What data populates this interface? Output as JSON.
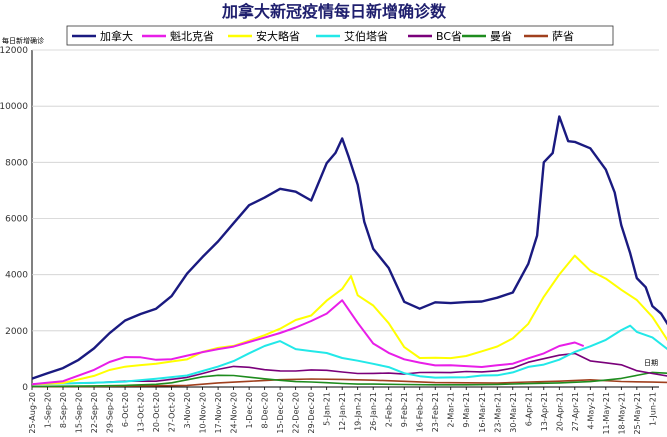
{
  "chart_data": {
    "type": "line",
    "title": "加拿大新冠疫情每日新增确诊数",
    "ylabel": "每日新增确诊",
    "xunit": "日期",
    "ylim": [
      0,
      12000
    ],
    "yticks": [
      0,
      2000,
      4000,
      6000,
      8000,
      10000,
      12000
    ],
    "grid": "horizontal",
    "legend_position": "top",
    "x_tick_labels": [
      "25-Aug-20",
      "1-Sep-20",
      "8-Sep-20",
      "15-Sep-20",
      "22-Sep-20",
      "29-Sep-20",
      "6-Oct-20",
      "13-Oct-20",
      "20-Oct-20",
      "27-Oct-20",
      "3-Nov-20",
      "10-Nov-20",
      "17-Nov-20",
      "24-Nov-20",
      "1-Dec-20",
      "8-Dec-20",
      "15-Dec-20",
      "22-Dec-20",
      "29-Dec-20",
      "5-Jan-21",
      "12-Jan-21",
      "19-Jan-21",
      "26-Jan-21",
      "2-Feb-21",
      "9-Feb-21",
      "16-Feb-21",
      "23-Feb-21",
      "2-Mar-21",
      "9-Mar-21",
      "16-Mar-21",
      "23-Mar-21",
      "30-Mar-21",
      "6-Apr-21",
      "13-Apr-21",
      "20-Apr-21",
      "27-Apr-21",
      "4-May-21",
      "11-May-21",
      "18-May-21",
      "25-May-21",
      "1-Jun-21"
    ],
    "x_start": "2020-08-25",
    "x_end": "2021-06-04",
    "series": [
      {
        "name": "加拿大",
        "color": "#1a1a80",
        "width": 2.4,
        "values": [
          [
            0,
            300
          ],
          [
            7,
            500
          ],
          [
            14,
            700
          ],
          [
            21,
            1000
          ],
          [
            28,
            1400
          ],
          [
            35,
            1900
          ],
          [
            42,
            2300
          ],
          [
            49,
            2500
          ],
          [
            56,
            2700
          ],
          [
            63,
            3200
          ],
          [
            70,
            4100
          ],
          [
            77,
            4800
          ],
          [
            84,
            5400
          ],
          [
            91,
            6000
          ],
          [
            98,
            6500
          ],
          [
            105,
            6600
          ],
          [
            112,
            6800
          ],
          [
            119,
            6700
          ],
          [
            126,
            6500
          ],
          [
            133,
            8000
          ],
          [
            137,
            8200
          ],
          [
            140,
            9100
          ],
          [
            143,
            8500
          ],
          [
            147,
            7500
          ],
          [
            150,
            6000
          ],
          [
            154,
            5100
          ],
          [
            161,
            4300
          ],
          [
            168,
            3000
          ],
          [
            175,
            2700
          ],
          [
            182,
            2900
          ],
          [
            189,
            2900
          ],
          [
            196,
            3000
          ],
          [
            203,
            3100
          ],
          [
            210,
            3300
          ],
          [
            217,
            3500
          ],
          [
            224,
            4500
          ],
          [
            228,
            5600
          ],
          [
            231,
            8000
          ],
          [
            235,
            8500
          ],
          [
            238,
            9400
          ],
          [
            242,
            8700
          ],
          [
            245,
            8400
          ],
          [
            252,
            8200
          ],
          [
            259,
            7600
          ],
          [
            263,
            6700
          ],
          [
            266,
            5800
          ],
          [
            270,
            4700
          ],
          [
            273,
            4000
          ],
          [
            277,
            3600
          ],
          [
            280,
            3000
          ],
          [
            284,
            2700
          ],
          [
            287,
            2300
          ],
          [
            290,
            2100
          ],
          [
            293,
            1900
          ],
          [
            296,
            2000
          ]
        ]
      },
      {
        "name": "魁北克省",
        "color": "#e81ee8",
        "width": 2.0,
        "values": [
          [
            0,
            100
          ],
          [
            14,
            200
          ],
          [
            28,
            600
          ],
          [
            35,
            900
          ],
          [
            42,
            1100
          ],
          [
            49,
            1100
          ],
          [
            56,
            1000
          ],
          [
            63,
            1000
          ],
          [
            70,
            1100
          ],
          [
            77,
            1200
          ],
          [
            84,
            1300
          ],
          [
            91,
            1400
          ],
          [
            98,
            1600
          ],
          [
            105,
            1800
          ],
          [
            112,
            2000
          ],
          [
            119,
            2200
          ],
          [
            126,
            2400
          ],
          [
            133,
            2600
          ],
          [
            140,
            3000
          ],
          [
            147,
            2200
          ],
          [
            154,
            1500
          ],
          [
            161,
            1200
          ],
          [
            168,
            1000
          ],
          [
            175,
            900
          ],
          [
            182,
            800
          ],
          [
            189,
            800
          ],
          [
            196,
            750
          ],
          [
            203,
            700
          ],
          [
            210,
            750
          ],
          [
            217,
            800
          ],
          [
            224,
            1000
          ],
          [
            231,
            1200
          ],
          [
            238,
            1500
          ],
          [
            245,
            1650
          ],
          [
            249,
            1500
          ]
        ]
      },
      {
        "name": "安大略省",
        "color": "#ffff00",
        "width": 2.0,
        "values": [
          [
            0,
            100
          ],
          [
            14,
            150
          ],
          [
            28,
            400
          ],
          [
            35,
            600
          ],
          [
            42,
            700
          ],
          [
            49,
            750
          ],
          [
            56,
            800
          ],
          [
            63,
            900
          ],
          [
            70,
            1000
          ],
          [
            77,
            1300
          ],
          [
            84,
            1450
          ],
          [
            91,
            1500
          ],
          [
            98,
            1650
          ],
          [
            105,
            1800
          ],
          [
            112,
            2000
          ],
          [
            119,
            2300
          ],
          [
            126,
            2500
          ],
          [
            133,
            3100
          ],
          [
            140,
            3600
          ],
          [
            144,
            4000
          ],
          [
            147,
            3400
          ],
          [
            154,
            3000
          ],
          [
            161,
            2300
          ],
          [
            168,
            1400
          ],
          [
            175,
            1000
          ],
          [
            182,
            1000
          ],
          [
            189,
            1000
          ],
          [
            196,
            1100
          ],
          [
            203,
            1300
          ],
          [
            210,
            1500
          ],
          [
            217,
            1800
          ],
          [
            224,
            2300
          ],
          [
            231,
            3200
          ],
          [
            238,
            3900
          ],
          [
            245,
            4500
          ],
          [
            252,
            4000
          ],
          [
            259,
            3800
          ],
          [
            266,
            3500
          ],
          [
            273,
            3200
          ],
          [
            280,
            2600
          ],
          [
            287,
            1700
          ],
          [
            294,
            1100
          ],
          [
            296,
            850
          ]
        ]
      },
      {
        "name": "艾伯塔省",
        "color": "#22e8e8",
        "width": 2.0,
        "values": [
          [
            0,
            100
          ],
          [
            28,
            150
          ],
          [
            42,
            200
          ],
          [
            56,
            300
          ],
          [
            70,
            400
          ],
          [
            77,
            550
          ],
          [
            84,
            700
          ],
          [
            91,
            900
          ],
          [
            98,
            1200
          ],
          [
            105,
            1500
          ],
          [
            112,
            1700
          ],
          [
            119,
            1400
          ],
          [
            126,
            1300
          ],
          [
            133,
            1200
          ],
          [
            140,
            1000
          ],
          [
            147,
            900
          ],
          [
            154,
            800
          ],
          [
            161,
            700
          ],
          [
            168,
            500
          ],
          [
            175,
            400
          ],
          [
            182,
            350
          ],
          [
            189,
            350
          ],
          [
            196,
            350
          ],
          [
            203,
            400
          ],
          [
            210,
            400
          ],
          [
            217,
            500
          ],
          [
            224,
            700
          ],
          [
            231,
            800
          ],
          [
            238,
            1000
          ],
          [
            245,
            1300
          ],
          [
            252,
            1500
          ],
          [
            259,
            1700
          ],
          [
            266,
            2000
          ],
          [
            270,
            2200
          ],
          [
            273,
            1900
          ],
          [
            280,
            1700
          ],
          [
            287,
            1300
          ],
          [
            294,
            500
          ],
          [
            296,
            300
          ]
        ]
      },
      {
        "name": "BC省",
        "color": "#7a007a",
        "width": 1.6,
        "values": [
          [
            0,
            100
          ],
          [
            28,
            150
          ],
          [
            42,
            200
          ],
          [
            56,
            200
          ],
          [
            70,
            350
          ],
          [
            77,
            500
          ],
          [
            84,
            650
          ],
          [
            91,
            750
          ],
          [
            98,
            700
          ],
          [
            105,
            600
          ],
          [
            112,
            550
          ],
          [
            119,
            550
          ],
          [
            126,
            600
          ],
          [
            133,
            600
          ],
          [
            140,
            550
          ],
          [
            147,
            500
          ],
          [
            154,
            500
          ],
          [
            161,
            500
          ],
          [
            168,
            450
          ],
          [
            175,
            500
          ],
          [
            182,
            500
          ],
          [
            189,
            500
          ],
          [
            196,
            550
          ],
          [
            203,
            550
          ],
          [
            210,
            600
          ],
          [
            217,
            700
          ],
          [
            224,
            900
          ],
          [
            231,
            1000
          ],
          [
            238,
            1100
          ],
          [
            245,
            1150
          ],
          [
            252,
            900
          ],
          [
            259,
            850
          ],
          [
            266,
            800
          ],
          [
            273,
            600
          ],
          [
            280,
            500
          ],
          [
            287,
            400
          ],
          [
            294,
            250
          ],
          [
            296,
            200
          ]
        ]
      },
      {
        "name": "曼省",
        "color": "#1e8c1e",
        "width": 1.6,
        "values": [
          [
            0,
            20
          ],
          [
            28,
            40
          ],
          [
            42,
            60
          ],
          [
            56,
            100
          ],
          [
            63,
            150
          ],
          [
            70,
            250
          ],
          [
            77,
            350
          ],
          [
            84,
            400
          ],
          [
            91,
            400
          ],
          [
            98,
            350
          ],
          [
            105,
            300
          ],
          [
            112,
            250
          ],
          [
            119,
            200
          ],
          [
            126,
            180
          ],
          [
            133,
            150
          ],
          [
            140,
            120
          ],
          [
            147,
            100
          ],
          [
            154,
            100
          ],
          [
            168,
            90
          ],
          [
            182,
            80
          ],
          [
            196,
            80
          ],
          [
            210,
            90
          ],
          [
            224,
            120
          ],
          [
            238,
            150
          ],
          [
            252,
            200
          ],
          [
            259,
            250
          ],
          [
            266,
            300
          ],
          [
            273,
            400
          ],
          [
            280,
            500
          ],
          [
            287,
            480
          ],
          [
            294,
            350
          ],
          [
            296,
            300
          ]
        ]
      },
      {
        "name": "萨省",
        "color": "#a0401e",
        "width": 1.6,
        "values": [
          [
            0,
            10
          ],
          [
            28,
            20
          ],
          [
            42,
            30
          ],
          [
            56,
            40
          ],
          [
            70,
            60
          ],
          [
            84,
            150
          ],
          [
            98,
            200
          ],
          [
            112,
            250
          ],
          [
            126,
            280
          ],
          [
            140,
            280
          ],
          [
            154,
            250
          ],
          [
            168,
            200
          ],
          [
            182,
            150
          ],
          [
            196,
            150
          ],
          [
            210,
            150
          ],
          [
            224,
            180
          ],
          [
            238,
            200
          ],
          [
            252,
            250
          ],
          [
            266,
            200
          ],
          [
            280,
            180
          ],
          [
            294,
            150
          ],
          [
            296,
            140
          ]
        ]
      }
    ]
  }
}
